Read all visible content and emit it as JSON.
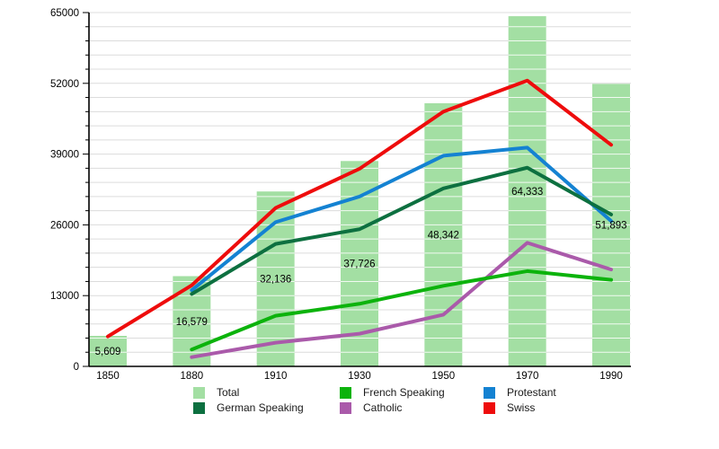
{
  "chart_data": {
    "type": "bar+line",
    "title": "",
    "xlabel": "",
    "ylabel": "",
    "x_labels": [
      "1850",
      "1880",
      "1910",
      "1930",
      "1950",
      "1970",
      "1990"
    ],
    "y_axis": {
      "min": 0,
      "max": 65000,
      "major_step": 13000,
      "minor_step": 2600,
      "tick_labels": [
        "0",
        "13000",
        "26000",
        "39000",
        "52000",
        "65000"
      ],
      "grid": true
    },
    "bars": {
      "name": "Total",
      "color": "#A3DFA3",
      "values": [
        5609,
        16579,
        32136,
        37726,
        48342,
        64333,
        51893
      ],
      "labels": [
        "5,609",
        "16,579",
        "32,136",
        "37,726",
        "48,342",
        "64,333",
        "51,893"
      ]
    },
    "series": [
      {
        "name": "Catholic",
        "color": "#AA5AAA",
        "values": [
          null,
          1700,
          4350,
          6000,
          9500,
          22700,
          17800
        ]
      },
      {
        "name": "French Speaking",
        "color": "#0CB30C",
        "values": [
          null,
          3100,
          9300,
          11500,
          14800,
          17500,
          15900
        ]
      },
      {
        "name": "Protestant",
        "color": "#1482D2",
        "values": [
          null,
          14000,
          26500,
          31200,
          38700,
          40200,
          26700
        ]
      },
      {
        "name": "German Speaking",
        "color": "#0D7040",
        "values": [
          null,
          13300,
          22500,
          25200,
          32700,
          36500,
          27900
        ]
      },
      {
        "name": "Swiss",
        "color": "#EE0C0C",
        "values": [
          5500,
          14900,
          29100,
          36300,
          46800,
          52500,
          40700
        ]
      }
    ],
    "style": {
      "grid_color": "#DCDCDC",
      "grid_over_bar_color": "rgba(255,255,255,0.85)",
      "axis_color": "#000000",
      "label_color": "#000000",
      "line_width": 4
    }
  },
  "legend": {
    "position": "bottom",
    "items": [
      {
        "label": "Total",
        "color": "#A3DFA3"
      },
      {
        "label": "French Speaking",
        "color": "#0CB30C"
      },
      {
        "label": "Protestant",
        "color": "#1482D2"
      },
      {
        "label": "German Speaking",
        "color": "#0D7040"
      },
      {
        "label": "Catholic",
        "color": "#AA5AAA"
      },
      {
        "label": "Swiss",
        "color": "#EE0C0C"
      }
    ]
  }
}
